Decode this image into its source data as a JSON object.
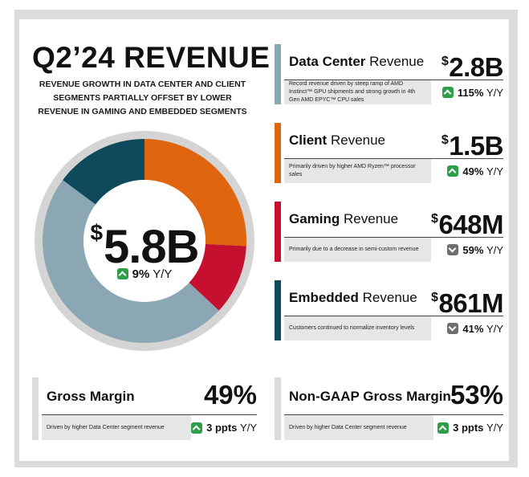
{
  "title": "Q2’24 REVENUE",
  "subtitle": "REVENUE GROWTH IN DATA CENTER AND CLIENT SEGMENTS PARTIALLY OFFSET BY LOWER REVENUE IN GAMING AND EMBEDDED SEGMENTS",
  "total": {
    "currency": "$",
    "value": "5.8B",
    "change": "9%",
    "change_unit": "Y/Y",
    "direction": "up"
  },
  "segments": [
    {
      "bold": "Data Center",
      "suffix": " Revenue",
      "currency": "$",
      "value": "2.8B",
      "description": "Record revenue driven by steep ramp of AMD Instinct™ GPU shipments and strong growth in 4th Gen AMD EPYC™ CPU sales",
      "change": "115%",
      "change_unit": "Y/Y",
      "direction": "up",
      "color": "#8aa7b3"
    },
    {
      "bold": "Client",
      "suffix": " Revenue",
      "currency": "$",
      "value": "1.5B",
      "description": "Primarily driven by higher AMD Ryzen™ processor sales",
      "change": "49%",
      "change_unit": "Y/Y",
      "direction": "up",
      "color": "#e0650f"
    },
    {
      "bold": "Gaming",
      "suffix": " Revenue",
      "currency": "$",
      "value": "648M",
      "description": "Primarily due to a decrease in semi-custom revenue",
      "change": "59%",
      "change_unit": "Y/Y",
      "direction": "down",
      "color": "#c5102f"
    },
    {
      "bold": "Embedded",
      "suffix": " Revenue",
      "currency": "$",
      "value": "861M",
      "description": "Customers continued to normalize inventory levels",
      "change": "41%",
      "change_unit": "Y/Y",
      "direction": "down",
      "color": "#0e4a5c"
    }
  ],
  "margins": [
    {
      "name": "Gross Margin",
      "value": "49%",
      "description": "Driven by higher Data Center segment revenue",
      "change": "3 ppts",
      "change_unit": "Y/Y",
      "direction": "up"
    },
    {
      "name": "Non-GAAP Gross Margin",
      "value": "53%",
      "description": "Driven by higher Data Center segment revenue",
      "change": "3 ppts",
      "change_unit": "Y/Y",
      "direction": "up"
    }
  ],
  "chart_data": {
    "type": "pie",
    "title": "Q2’24 REVENUE",
    "categories": [
      "Data Center",
      "Client",
      "Gaming",
      "Embedded"
    ],
    "values": [
      2.8,
      1.5,
      0.648,
      0.861
    ],
    "colors": [
      "#8aa7b3",
      "#e0650f",
      "#c5102f",
      "#0e4a5c"
    ],
    "total_label": "$5.8B",
    "style": "donut"
  }
}
